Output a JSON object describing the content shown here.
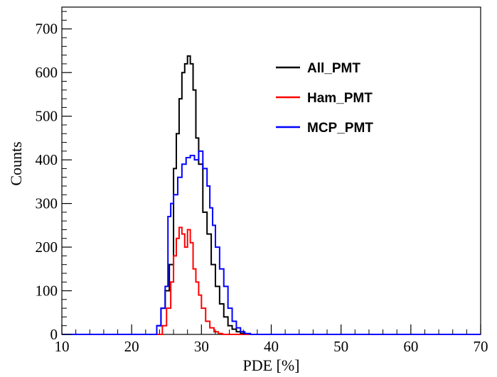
{
  "chart_data": {
    "type": "line",
    "title": "",
    "xlabel": "PDE [%]",
    "ylabel": "Counts",
    "xlim": [
      10,
      70
    ],
    "ylim": [
      0,
      750
    ],
    "x_ticks": [
      10,
      20,
      30,
      40,
      50,
      60,
      70
    ],
    "y_ticks": [
      0,
      100,
      200,
      300,
      400,
      500,
      600,
      700
    ],
    "grid": false,
    "legend_position": "top-right",
    "series": [
      {
        "name": "All_PMT",
        "color": "#000000",
        "x": [
          10,
          22.8,
          23.6,
          24.2,
          24.8,
          25.4,
          26.0,
          26.4,
          26.8,
          27.2,
          27.6,
          28.0,
          28.4,
          28.8,
          29.2,
          29.6,
          30.2,
          30.8,
          31.4,
          32.0,
          32.6,
          33.2,
          33.8,
          34.4,
          35.0,
          35.6,
          36.4,
          37.0,
          70
        ],
        "y": [
          0,
          0,
          20,
          60,
          100,
          160,
          380,
          460,
          540,
          600,
          620,
          638,
          620,
          560,
          450,
          390,
          280,
          230,
          160,
          110,
          70,
          40,
          20,
          12,
          6,
          2,
          0,
          0,
          0
        ]
      },
      {
        "name": "Ham_PMT",
        "color": "#ff0000",
        "x": [
          10,
          23.8,
          24.4,
          25.0,
          25.6,
          26.0,
          26.4,
          26.8,
          27.2,
          27.6,
          28.0,
          28.4,
          28.8,
          29.2,
          29.6,
          30.0,
          30.6,
          31.2,
          31.8,
          32.4,
          33.0,
          33.6,
          70
        ],
        "y": [
          0,
          0,
          20,
          60,
          120,
          180,
          220,
          245,
          230,
          200,
          240,
          210,
          150,
          120,
          90,
          60,
          30,
          15,
          6,
          2,
          0,
          0,
          0
        ]
      },
      {
        "name": "MCP_PMT",
        "color": "#0000ff",
        "x": [
          10,
          22.8,
          23.6,
          24.2,
          24.8,
          25.2,
          25.6,
          26.0,
          26.6,
          27.2,
          27.8,
          28.4,
          29.0,
          29.6,
          30.2,
          30.8,
          31.2,
          31.6,
          32.0,
          32.6,
          33.2,
          33.8,
          34.4,
          35.0,
          35.6,
          36.2,
          37.0,
          70
        ],
        "y": [
          0,
          0,
          20,
          60,
          110,
          270,
          300,
          320,
          360,
          390,
          405,
          410,
          400,
          420,
          380,
          340,
          290,
          250,
          200,
          150,
          110,
          60,
          30,
          15,
          6,
          2,
          0,
          0
        ]
      }
    ]
  }
}
